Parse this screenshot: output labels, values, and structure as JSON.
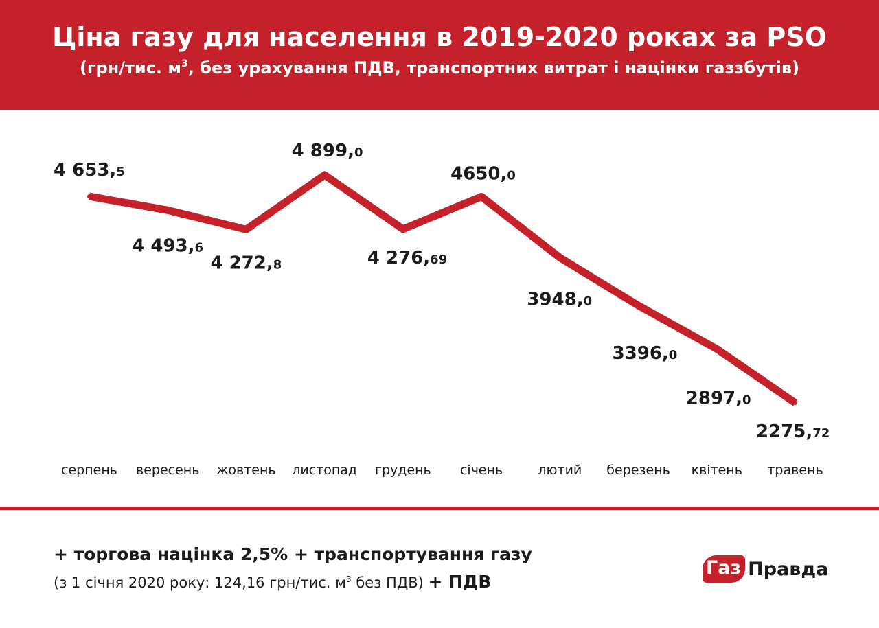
{
  "colors": {
    "brand": "#c4212a",
    "text": "#1b1b1b",
    "background": "#ffffff"
  },
  "header": {
    "title": "Ціна газу для населення в 2019-2020 роках за PSO",
    "subtitle_before_sup": "(грн/тис. м",
    "subtitle_sup": "3",
    "subtitle_after_sup": ", без урахування ПДВ, транспортних витрат і націнки газзбутів)"
  },
  "chart_data": {
    "type": "line",
    "title": "Ціна газу для населення в 2019-2020 роках за PSO",
    "ylabel": "",
    "xlabel": "",
    "categories": [
      "серпень",
      "вересень",
      "жовтень",
      "листопад",
      "грудень",
      "січень",
      "лютий",
      "березень",
      "квітень",
      "травень"
    ],
    "series": [
      {
        "values": [
          4653.5,
          4493.6,
          4272.8,
          4899.0,
          4276.69,
          4650.0,
          3948.0,
          3396.0,
          2897.0,
          2275.72
        ]
      }
    ],
    "data_labels": [
      {
        "main": "4 653,",
        "tail": "5",
        "side": "above"
      },
      {
        "main": "4 493,",
        "tail": "6",
        "side": "below"
      },
      {
        "main": "4 272,",
        "tail": "8",
        "side": "below"
      },
      {
        "main": "4 899,",
        "tail": "0",
        "side": "above"
      },
      {
        "main": "4 276,",
        "tail": "69",
        "side": "below"
      },
      {
        "main": "4650,",
        "tail": "0",
        "side": "above"
      },
      {
        "main": "3948,",
        "tail": "0",
        "side": "below"
      },
      {
        "main": "3396,",
        "tail": "0",
        "side": "below"
      },
      {
        "main": "2897,",
        "tail": "0",
        "side": "below"
      },
      {
        "main": "2275,",
        "tail": "72",
        "side": "below"
      }
    ],
    "ylim": [
      2275.72,
      4899.0
    ],
    "grid": false,
    "legend": "none"
  },
  "footer": {
    "line1": "+ торгова націнка 2,5% + транспортування газу",
    "line2_before_sup": "(з 1 січня 2020 року: 124,16 грн/тис. м",
    "line2_sup": "3",
    "line2_after_sup": " без ПДВ) ",
    "line2_bold": "+ ПДВ"
  },
  "logo": {
    "badge": "Газ",
    "word": "Правда"
  }
}
